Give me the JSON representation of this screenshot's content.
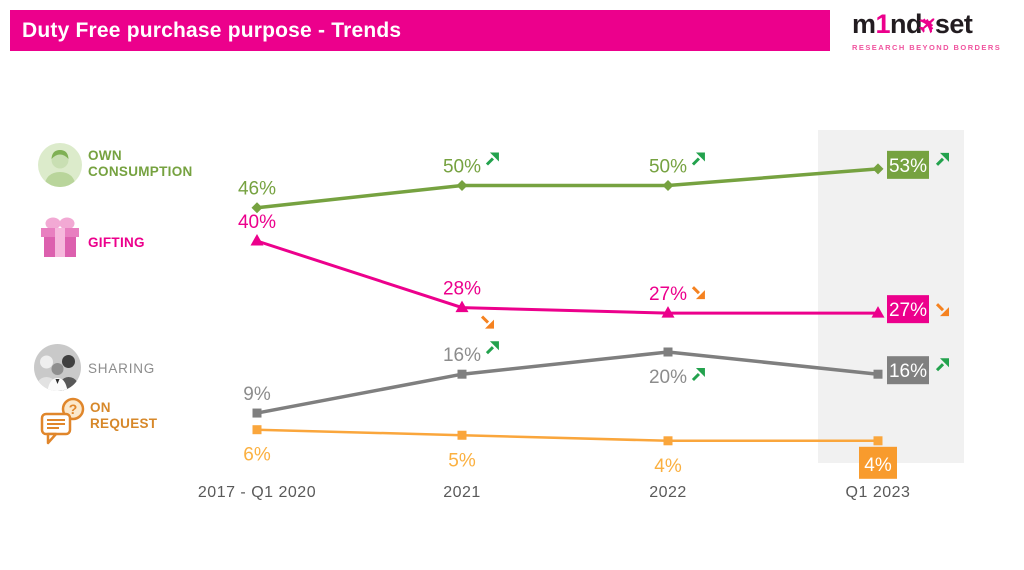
{
  "header": {
    "title": "Duty Free purchase purpose - Trends",
    "bar_color": "#EC008C"
  },
  "logo": {
    "part1": "m",
    "part2": "1",
    "part3": "nd",
    "part4": "set",
    "tagline": "RESEARCH BEYOND BORDERS",
    "accent_color": "#EC008C",
    "text_color": "#221C20"
  },
  "legend": {
    "items": [
      {
        "lines": [
          "OWN",
          "CONSUMPTION"
        ],
        "color": "#76A240",
        "icon": "person-icon"
      },
      {
        "lines": [
          "GIFTING"
        ],
        "color": "#EC008C",
        "icon": "gift-icon"
      },
      {
        "lines": [
          "SHARING"
        ],
        "color": "#8C8C8C",
        "icon": "people-icon"
      },
      {
        "lines": [
          "ON",
          "REQUEST"
        ],
        "color": "#D7882A",
        "icon": "chat-question-icon"
      }
    ]
  },
  "chart_data": {
    "type": "line",
    "categories": [
      "2017 - Q1 2020",
      "2021",
      "2022",
      "Q1 2023"
    ],
    "ylim": [
      0,
      60
    ],
    "grid": false,
    "legend_position": "left",
    "highlight_category": "Q1 2023",
    "axis_label_color": "#595959",
    "highlight_band_color": "#F1F1F1",
    "trend_colors": {
      "up": "#23A24D",
      "down": "#F58220"
    },
    "series": [
      {
        "name": "Own Consumption",
        "color": "#76A240",
        "box_color": "#76A240",
        "marker": "diamond",
        "values": [
          46,
          50,
          50,
          53
        ],
        "points": [
          {
            "label": "46%",
            "placement": "above",
            "trend": null
          },
          {
            "label": "50%",
            "placement": "above",
            "trend": "up",
            "trend_placement": "inline"
          },
          {
            "label": "50%",
            "placement": "above",
            "trend": "up",
            "trend_placement": "inline"
          },
          {
            "label": "53%",
            "placement": "box-right",
            "trend": "up",
            "trend_placement": "inline"
          }
        ]
      },
      {
        "name": "Gifting",
        "color": "#EC008C",
        "box_color": "#EC008C",
        "marker": "triangle",
        "values": [
          40,
          28,
          27,
          27
        ],
        "points": [
          {
            "label": "40%",
            "placement": "above",
            "trend": null
          },
          {
            "label": "28%",
            "placement": "above",
            "trend": "down",
            "trend_placement": "below-point"
          },
          {
            "label": "27%",
            "placement": "above",
            "trend": "down",
            "trend_placement": "inline"
          },
          {
            "label": "27%",
            "placement": "box-right",
            "trend": "down",
            "trend_placement": "inline"
          }
        ]
      },
      {
        "name": "Sharing",
        "color": "#7F7F7F",
        "box_color": "#808080",
        "label_color": "#8C8C8C",
        "marker": "square",
        "values": [
          9,
          16,
          20,
          16
        ],
        "points": [
          {
            "label": "9%",
            "placement": "above",
            "trend": null
          },
          {
            "label": "16%",
            "placement": "above",
            "trend": "up",
            "trend_placement": "inline"
          },
          {
            "label": "20%",
            "placement": "below",
            "trend": "up",
            "trend_placement": "inline"
          },
          {
            "label": "16%",
            "placement": "box-right",
            "trend": "up",
            "trend_placement": "inline"
          }
        ]
      },
      {
        "name": "On Request",
        "color": "#FAA63C",
        "box_color": "#F89B2D",
        "label_color": "#FBB040",
        "marker": "square",
        "values": [
          6,
          5,
          4,
          4
        ],
        "points": [
          {
            "label": "6%",
            "placement": "below",
            "trend": null
          },
          {
            "label": "5%",
            "placement": "below",
            "trend": null
          },
          {
            "label": "4%",
            "placement": "below",
            "trend": null
          },
          {
            "label": "4%",
            "placement": "box-below",
            "trend": null
          }
        ]
      }
    ]
  }
}
